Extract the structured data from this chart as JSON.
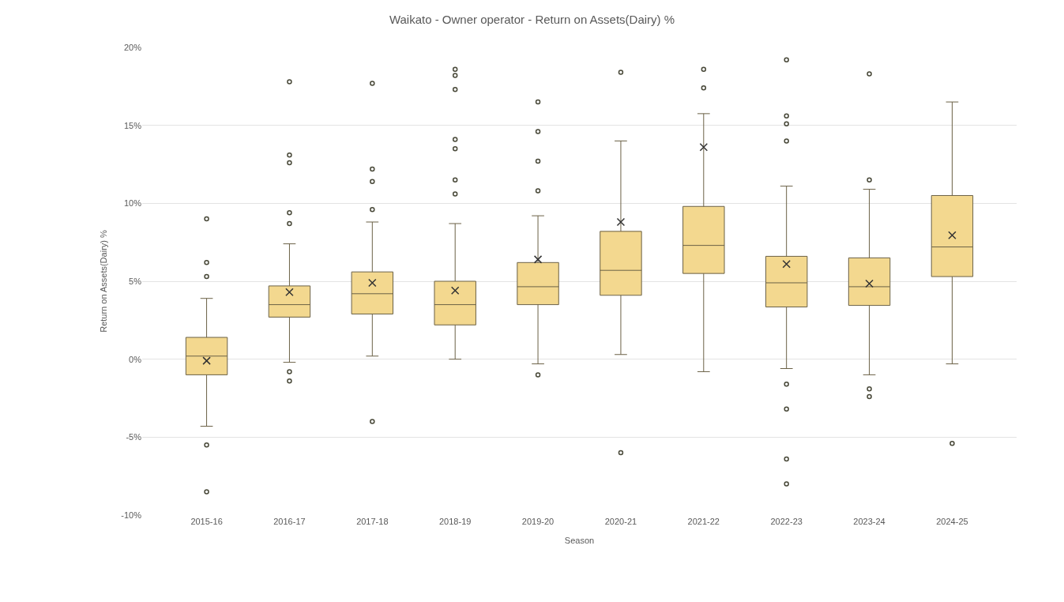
{
  "chart_data": {
    "type": "box",
    "title": "Waikato - Owner operator - Return on Assets(Dairy) %",
    "xlabel": "Season",
    "ylabel": "Return on Assets(Dairy) %",
    "categories": [
      "2015-16",
      "2016-17",
      "2017-18",
      "2018-19",
      "2019-20",
      "2020-21",
      "2021-22",
      "2022-23",
      "2023-24",
      "2024-25"
    ],
    "color": "#f3d88f",
    "marker": "circle",
    "grid": "y",
    "ylim": [
      -10,
      20
    ],
    "yticks": [
      {
        "value": -10,
        "label": "-10%"
      },
      {
        "value": -5,
        "label": "-5%"
      },
      {
        "value": 0,
        "label": "0%"
      },
      {
        "value": 5,
        "label": "5%"
      },
      {
        "value": 10,
        "label": "10%"
      },
      {
        "value": 15,
        "label": "15%"
      },
      {
        "value": 20,
        "label": "20%"
      }
    ],
    "boxes": [
      {
        "low": -4.3,
        "q1": -1.0,
        "median": 0.2,
        "q3": 1.4,
        "high": 3.9,
        "mean": -0.1,
        "outliers": [
          9.0,
          6.2,
          5.3,
          -5.5,
          -8.5
        ]
      },
      {
        "low": -0.2,
        "q1": 2.7,
        "median": 3.5,
        "q3": 4.7,
        "high": 7.4,
        "mean": 4.3,
        "outliers": [
          17.8,
          13.1,
          12.6,
          9.4,
          8.7,
          -0.8,
          -1.4
        ]
      },
      {
        "low": 0.2,
        "q1": 2.9,
        "median": 4.2,
        "q3": 5.6,
        "high": 8.8,
        "mean": 4.9,
        "outliers": [
          17.7,
          12.2,
          11.4,
          9.6,
          -4.0
        ]
      },
      {
        "low": 0.0,
        "q1": 2.2,
        "median": 3.5,
        "q3": 5.0,
        "high": 8.7,
        "mean": 4.4,
        "outliers": [
          18.6,
          18.2,
          17.3,
          14.1,
          13.5,
          11.5,
          10.6
        ]
      },
      {
        "low": -0.3,
        "q1": 3.5,
        "median": 4.65,
        "q3": 6.2,
        "high": 9.2,
        "mean": 6.4,
        "outliers": [
          16.5,
          14.6,
          12.7,
          10.8,
          -1.0
        ]
      },
      {
        "low": 0.3,
        "q1": 4.1,
        "median": 5.7,
        "q3": 8.2,
        "high": 14.0,
        "mean": 8.8,
        "outliers": [
          18.4,
          -6.0
        ]
      },
      {
        "low": -0.8,
        "q1": 5.5,
        "median": 7.3,
        "q3": 9.8,
        "high": 15.75,
        "mean": 13.6,
        "outliers": [
          18.6,
          17.4
        ]
      },
      {
        "low": -0.6,
        "q1": 3.35,
        "median": 4.9,
        "q3": 6.6,
        "high": 11.1,
        "mean": 6.1,
        "outliers": [
          19.2,
          15.6,
          15.1,
          14.0,
          -1.6,
          -3.2,
          -6.4,
          -8.0
        ]
      },
      {
        "low": -1.0,
        "q1": 3.45,
        "median": 4.65,
        "q3": 6.5,
        "high": 10.9,
        "mean": 4.85,
        "outliers": [
          18.3,
          11.5,
          -1.9,
          -2.4
        ]
      },
      {
        "low": -0.3,
        "q1": 5.3,
        "median": 7.2,
        "q3": 10.5,
        "high": 16.5,
        "mean": 7.95,
        "outliers": [
          -5.4
        ]
      }
    ]
  }
}
